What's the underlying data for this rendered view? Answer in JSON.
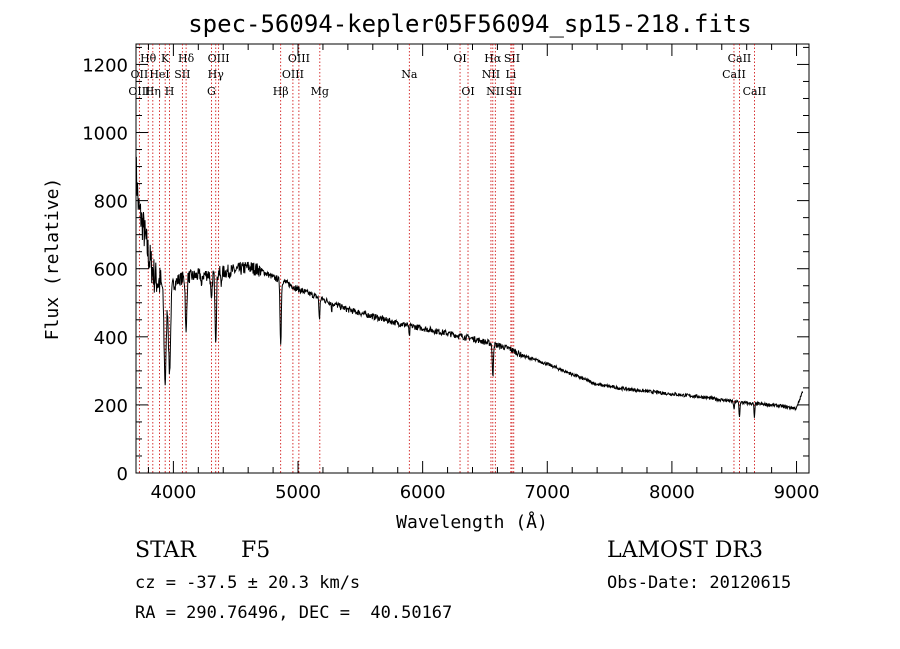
{
  "chart_data": {
    "type": "line",
    "title": "spec-56094-kepler05F56094_sp15-218.fits",
    "xlabel": "Wavelength (Å)",
    "ylabel": "Flux (relative)",
    "xlim": [
      3700,
      9100
    ],
    "ylim": [
      0,
      1260
    ],
    "x_ticks": [
      4000,
      5000,
      6000,
      7000,
      8000,
      9000
    ],
    "y_ticks": [
      0,
      200,
      400,
      600,
      800,
      1000,
      1200
    ],
    "grid": false,
    "continuum": [
      [
        3700,
        900
      ],
      [
        3720,
        780
      ],
      [
        3760,
        720
      ],
      [
        3800,
        640
      ],
      [
        3850,
        575
      ],
      [
        3900,
        555
      ],
      [
        3950,
        540
      ],
      [
        4000,
        555
      ],
      [
        4050,
        570
      ],
      [
        4100,
        575
      ],
      [
        4200,
        580
      ],
      [
        4300,
        585
      ],
      [
        4400,
        590
      ],
      [
        4500,
        595
      ],
      [
        4600,
        605
      ],
      [
        4700,
        595
      ],
      [
        4800,
        575
      ],
      [
        4900,
        560
      ],
      [
        5000,
        540
      ],
      [
        5200,
        510
      ],
      [
        5400,
        480
      ],
      [
        5600,
        460
      ],
      [
        5800,
        440
      ],
      [
        6000,
        425
      ],
      [
        6200,
        410
      ],
      [
        6400,
        395
      ],
      [
        6600,
        375
      ],
      [
        6700,
        365
      ],
      [
        6800,
        345
      ],
      [
        7000,
        320
      ],
      [
        7200,
        290
      ],
      [
        7400,
        260
      ],
      [
        7600,
        248
      ],
      [
        7800,
        240
      ],
      [
        8000,
        232
      ],
      [
        8200,
        225
      ],
      [
        8400,
        215
      ],
      [
        8600,
        205
      ],
      [
        8800,
        200
      ],
      [
        9000,
        190
      ],
      [
        9050,
        240
      ]
    ],
    "absorption_features": [
      {
        "wave": 3934,
        "depth": 280,
        "width": 12
      },
      {
        "wave": 3969,
        "depth": 250,
        "width": 12
      },
      {
        "wave": 4102,
        "depth": 170,
        "width": 8
      },
      {
        "wave": 4227,
        "depth": 40,
        "width": 5
      },
      {
        "wave": 4305,
        "depth": 90,
        "width": 8
      },
      {
        "wave": 4340,
        "depth": 190,
        "width": 8
      },
      {
        "wave": 4383,
        "depth": 40,
        "width": 5
      },
      {
        "wave": 4861,
        "depth": 190,
        "width": 7
      },
      {
        "wave": 5172,
        "depth": 60,
        "width": 6
      },
      {
        "wave": 5270,
        "depth": 25,
        "width": 4
      },
      {
        "wave": 5893,
        "depth": 35,
        "width": 5
      },
      {
        "wave": 6563,
        "depth": 100,
        "width": 6
      },
      {
        "wave": 8498,
        "depth": 25,
        "width": 5
      },
      {
        "wave": 8542,
        "depth": 45,
        "width": 5
      },
      {
        "wave": 8662,
        "depth": 40,
        "width": 5
      }
    ],
    "line_markers": [
      {
        "label": "Hθ",
        "wave": 3798,
        "row": 0
      },
      {
        "label": "OII",
        "wave": 3727,
        "row": 1
      },
      {
        "label": "OIII",
        "wave": 3727,
        "row": 2
      },
      {
        "label": "K",
        "wave": 3934,
        "row": 0
      },
      {
        "label": "HeI",
        "wave": 3889,
        "row": 1
      },
      {
        "label": "Hη",
        "wave": 3835,
        "row": 2
      },
      {
        "label": "SII",
        "wave": 4072,
        "row": 1
      },
      {
        "label": "H",
        "wave": 3969,
        "row": 2
      },
      {
        "label": "Hδ",
        "wave": 4102,
        "row": 0
      },
      {
        "label": "OIII",
        "wave": 4363,
        "row": 0
      },
      {
        "label": "Hγ",
        "wave": 4340,
        "row": 1
      },
      {
        "label": "G",
        "wave": 4305,
        "row": 2
      },
      {
        "label": "OIII",
        "wave": 5007,
        "row": 0
      },
      {
        "label": "OIII",
        "wave": 4959,
        "row": 1
      },
      {
        "label": "Hβ",
        "wave": 4861,
        "row": 2
      },
      {
        "label": "Mg",
        "wave": 5175,
        "row": 2
      },
      {
        "label": "Na",
        "wave": 5893,
        "row": 1
      },
      {
        "label": "OI",
        "wave": 6300,
        "row": 0
      },
      {
        "label": "OI",
        "wave": 6364,
        "row": 2
      },
      {
        "label": "Hα",
        "wave": 6563,
        "row": 0
      },
      {
        "label": "SII",
        "wave": 6717,
        "row": 0
      },
      {
        "label": "NII",
        "wave": 6548,
        "row": 1
      },
      {
        "label": "Li",
        "wave": 6708,
        "row": 1
      },
      {
        "label": "NII",
        "wave": 6583,
        "row": 2
      },
      {
        "label": "SII",
        "wave": 6731,
        "row": 2
      },
      {
        "label": "CaII",
        "wave": 8542,
        "row": 0
      },
      {
        "label": "CaII",
        "wave": 8498,
        "row": 1
      },
      {
        "label": "CaII",
        "wave": 8662,
        "row": 2
      }
    ]
  },
  "info": {
    "object_class": "STAR",
    "subclass": "F5",
    "survey": "LAMOST DR3",
    "redshift": "cz = -37.5 ± 20.3 km/s",
    "obs_date": "Obs-Date: 20120615",
    "coordinates": "RA = 290.76496, DEC =  40.50167"
  }
}
